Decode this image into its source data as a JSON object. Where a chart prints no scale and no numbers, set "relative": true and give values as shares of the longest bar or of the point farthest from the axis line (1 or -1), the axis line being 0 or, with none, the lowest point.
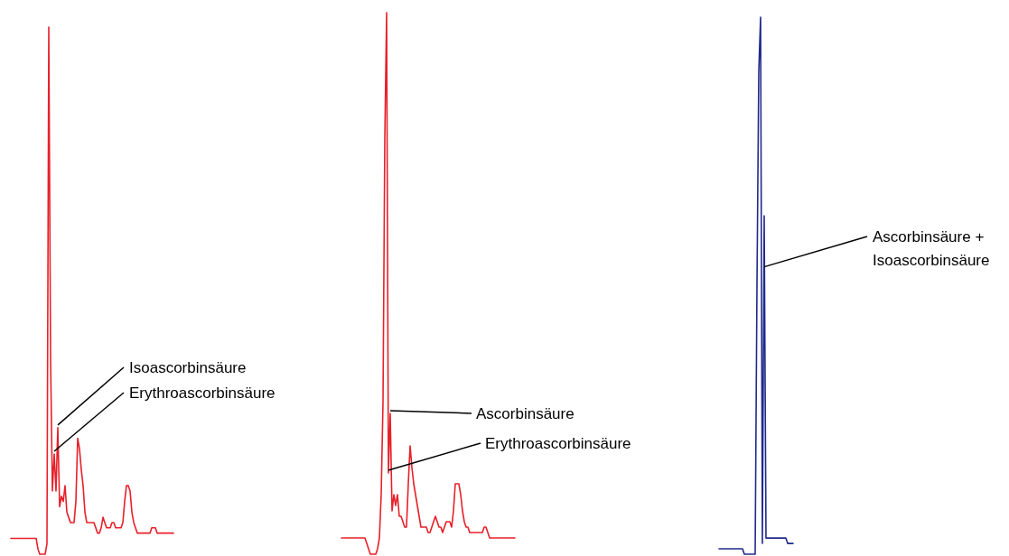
{
  "chart_data": [
    {
      "type": "line",
      "relative": true,
      "categories": [
        null,
        null,
        null,
        null,
        null,
        null,
        null,
        null,
        null,
        null,
        null,
        null,
        null,
        null,
        null,
        null,
        null,
        null,
        null,
        null,
        null,
        null,
        null,
        null,
        null,
        null,
        null,
        null,
        null,
        null,
        null,
        null,
        null,
        null,
        null,
        null,
        null,
        null,
        null,
        null,
        null,
        null,
        null,
        null,
        null,
        null,
        null,
        null,
        null,
        null,
        null,
        null,
        null,
        null,
        null,
        null,
        null,
        null,
        null,
        null,
        null,
        null,
        null,
        null,
        null,
        null,
        null,
        null,
        null,
        null,
        null,
        null,
        null,
        null,
        null,
        null,
        null,
        null,
        null,
        null,
        null,
        null,
        null,
        null,
        null,
        null,
        null,
        null,
        null,
        null,
        null
      ],
      "series": [
        {
          "color": "#e8202a",
          "values": [
            0.03,
            0.03,
            0.03,
            0.03,
            0.03,
            0.03,
            0.03,
            0.03,
            0.03,
            0.03,
            0.03,
            0.03,
            0.03,
            0.03,
            0.03,
            0.01,
            0,
            0,
            0,
            0,
            0.02,
            1,
            0.37,
            0.12,
            0.19,
            0.12,
            0.24,
            0.09,
            0.11,
            0.1,
            0.13,
            0.08,
            0.07,
            0.06,
            0.06,
            0.06,
            0.1,
            0.22,
            0.2,
            0.16,
            0.13,
            0.08,
            0.06,
            0.06,
            0.06,
            0.06,
            0.06,
            0.05,
            0.04,
            0.04,
            0.05,
            0.07,
            0.06,
            0.05,
            0.05,
            0.05,
            0.06,
            0.06,
            0.05,
            0.05,
            0.05,
            0.05,
            0.06,
            0.1,
            0.13,
            0.13,
            0.12,
            0.08,
            0.06,
            0.05,
            0.04,
            0.04,
            0.04,
            0.04,
            0.04,
            0.04,
            0.04,
            0.04,
            0.05,
            0.05,
            0.05,
            0.04,
            0.04,
            0.04,
            0.04,
            0.04,
            0.04,
            0.04,
            0.04,
            0.04,
            0.04
          ]
        }
      ],
      "annotations": [
        "Isoascorbinsäure",
        "Erythroascorbinsäure"
      ]
    },
    {
      "type": "line",
      "relative": true,
      "categories": [
        null,
        null,
        null,
        null,
        null,
        null,
        null,
        null,
        null,
        null,
        null,
        null,
        null,
        null,
        null,
        null,
        null,
        null,
        null,
        null,
        null,
        null,
        null,
        null,
        null,
        null,
        null,
        null,
        null,
        null,
        null,
        null,
        null,
        null,
        null,
        null,
        null,
        null,
        null,
        null,
        null,
        null,
        null,
        null,
        null,
        null,
        null,
        null,
        null,
        null,
        null,
        null,
        null,
        null,
        null,
        null,
        null,
        null,
        null,
        null,
        null,
        null,
        null,
        null,
        null,
        null,
        null,
        null,
        null,
        null,
        null,
        null,
        null,
        null,
        null,
        null,
        null,
        null,
        null,
        null,
        null,
        null,
        null,
        null,
        null,
        null,
        null,
        null,
        null,
        null,
        null,
        null,
        null,
        null,
        null,
        null,
        null
      ],
      "series": [
        {
          "color": "#e8202a",
          "values": [
            0.03,
            0.03,
            0.03,
            0.03,
            0.03,
            0.03,
            0.03,
            0.03,
            0.03,
            0.03,
            0.03,
            0.03,
            0.03,
            0.03,
            0.02,
            0.01,
            0,
            0,
            0,
            0,
            0.01,
            0.03,
            0.11,
            0.28,
            0.77,
            1,
            0.15,
            0.26,
            0.08,
            0.11,
            0.09,
            0.11,
            0.07,
            0.07,
            0.06,
            0.05,
            0.05,
            0.13,
            0.2,
            0.16,
            0.13,
            0.11,
            0.09,
            0.07,
            0.05,
            0.05,
            0.05,
            0.05,
            0.04,
            0.04,
            0.05,
            0.06,
            0.07,
            0.06,
            0.05,
            0.05,
            0.04,
            0.05,
            0.06,
            0.06,
            0.06,
            0.05,
            0.08,
            0.13,
            0.13,
            0.13,
            0.11,
            0.08,
            0.06,
            0.05,
            0.05,
            0.04,
            0.04,
            0.04,
            0.04,
            0.04,
            0.04,
            0.04,
            0.04,
            0.05,
            0.05,
            0.04,
            0.03,
            0.03,
            0.03,
            0.03,
            0.03,
            0.03,
            0.03,
            0.03,
            0.03,
            0.03,
            0.03,
            0.03,
            0.03,
            0.03,
            0.03
          ]
        }
      ],
      "annotations": [
        "Ascorbinsäure",
        "Erythroascorbinsäure"
      ]
    },
    {
      "type": "line",
      "relative": true,
      "categories": [
        null,
        null,
        null,
        null,
        null,
        null,
        null,
        null,
        null,
        null,
        null,
        null,
        null,
        null,
        null,
        null,
        null,
        null,
        null,
        null,
        null,
        null,
        null,
        null,
        null,
        null,
        null,
        null,
        null,
        null,
        null,
        null,
        null,
        null,
        null,
        null,
        null,
        null,
        null,
        null,
        null,
        null
      ],
      "series": [
        {
          "color": "#1f2a8c",
          "values": [
            0.01,
            0.01,
            0.01,
            0.01,
            0.01,
            0.01,
            0.01,
            0.01,
            0.01,
            0.01,
            0.01,
            0.01,
            0.01,
            0.01,
            0,
            0,
            0,
            0,
            0,
            0,
            0,
            0.5,
            0.9,
            1,
            0.02,
            0.63,
            0.03,
            0.03,
            0.03,
            0.03,
            0.03,
            0.03,
            0.03,
            0.03,
            0.03,
            0.03,
            0.03,
            0.03,
            0.02,
            0.02,
            0.02,
            0.02
          ]
        }
      ],
      "annotations": [
        "Ascorbinsäure +\nIsoascorbinsäure"
      ]
    }
  ]
}
